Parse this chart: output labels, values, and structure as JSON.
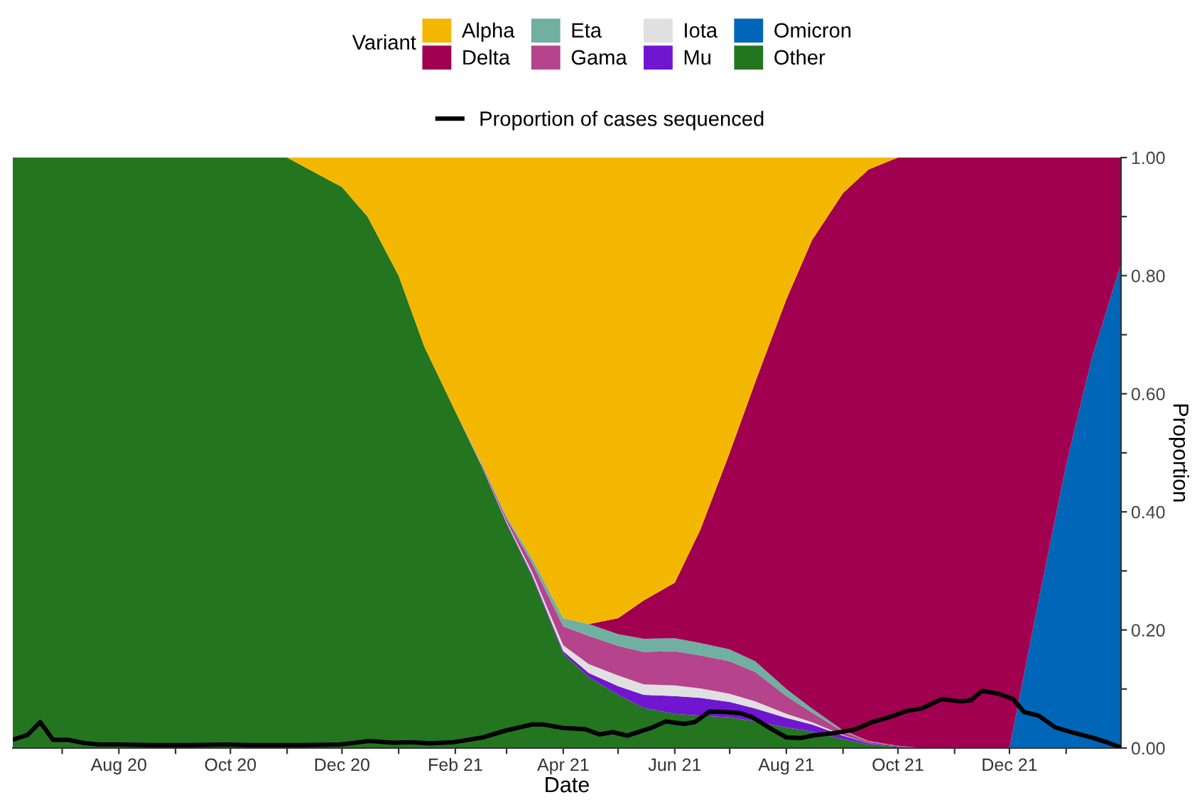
{
  "chart_data": {
    "type": "area",
    "stacked": true,
    "xlabel": "Date",
    "ylabel": "Proportion",
    "legend_title": "Variant",
    "legend": "top",
    "grid": false,
    "x": [
      "2020-06-04",
      "2020-07-01",
      "2020-08-01",
      "2020-09-01",
      "2020-10-01",
      "2020-11-01",
      "2020-12-01",
      "2020-12-15",
      "2021-01-01",
      "2021-01-15",
      "2021-02-01",
      "2021-02-15",
      "2021-03-01",
      "2021-03-15",
      "2021-04-01",
      "2021-04-15",
      "2021-05-01",
      "2021-05-15",
      "2021-06-01",
      "2021-06-15",
      "2021-07-01",
      "2021-07-15",
      "2021-08-01",
      "2021-08-15",
      "2021-09-01",
      "2021-09-15",
      "2021-10-01",
      "2021-10-15",
      "2021-11-01",
      "2021-11-15",
      "2021-12-01",
      "2021-12-15",
      "2022-01-01",
      "2022-01-15",
      "2022-01-31"
    ],
    "series": [
      {
        "name": "Other",
        "color": "#237520",
        "values": [
          1,
          1,
          1,
          1,
          1,
          1,
          0.95,
          0.9,
          0.8,
          0.68,
          0.57,
          0.48,
          0.38,
          0.29,
          0.16,
          0.12,
          0.09,
          0.068,
          0.058,
          0.055,
          0.052,
          0.045,
          0.035,
          0.028,
          0.015,
          0.006,
          0.002,
          0,
          null,
          null,
          null,
          null,
          null,
          null,
          null
        ]
      },
      {
        "name": "Omicron",
        "color": "#0066b8",
        "values": [
          null,
          null,
          null,
          null,
          null,
          null,
          null,
          null,
          null,
          null,
          null,
          null,
          null,
          null,
          null,
          null,
          null,
          null,
          null,
          null,
          null,
          null,
          null,
          null,
          null,
          null,
          null,
          null,
          null,
          null,
          0,
          0.22,
          0.48,
          0.66,
          0.82
        ]
      },
      {
        "name": "Mu",
        "color": "#7116d0",
        "values": [
          null,
          null,
          null,
          null,
          null,
          null,
          null,
          null,
          null,
          null,
          null,
          0.001,
          0.002,
          0.003,
          0.004,
          0.007,
          0.015,
          0.022,
          0.03,
          0.03,
          0.026,
          0.022,
          0.016,
          0.012,
          0.006,
          0.002,
          0.001,
          0,
          null,
          null,
          null,
          null,
          null,
          null,
          null
        ]
      },
      {
        "name": "Iota",
        "color": "#e0e0e0",
        "values": [
          null,
          null,
          null,
          null,
          null,
          null,
          null,
          null,
          null,
          null,
          0,
          0.001,
          0.002,
          0.005,
          0.01,
          0.015,
          0.018,
          0.018,
          0.018,
          0.016,
          0.014,
          0.012,
          0.007,
          0.004,
          0.001,
          0,
          null,
          null,
          null,
          null,
          null,
          null,
          null,
          null,
          null
        ]
      },
      {
        "name": "Gama",
        "color": "#b5448c",
        "values": [
          null,
          null,
          null,
          null,
          null,
          null,
          null,
          null,
          null,
          null,
          0,
          0.002,
          0.005,
          0.015,
          0.032,
          0.048,
          0.05,
          0.055,
          0.058,
          0.056,
          0.055,
          0.05,
          0.03,
          0.016,
          0.006,
          0.003,
          0.001,
          0,
          null,
          null,
          null,
          null,
          null,
          null,
          null
        ]
      },
      {
        "name": "Eta",
        "color": "#6fb0a0",
        "values": [
          null,
          null,
          null,
          null,
          null,
          null,
          null,
          null,
          null,
          null,
          0,
          0.001,
          0.003,
          0.008,
          0.014,
          0.02,
          0.02,
          0.022,
          0.022,
          0.021,
          0.02,
          0.018,
          0.012,
          0.007,
          0.002,
          0.001,
          0,
          null,
          null,
          null,
          null,
          null,
          null,
          null,
          null
        ]
      },
      {
        "name": "Delta",
        "color": "#a0004f",
        "values": [
          null,
          null,
          null,
          null,
          null,
          null,
          null,
          null,
          null,
          null,
          null,
          null,
          null,
          null,
          null,
          0,
          0.027,
          0.065,
          0.094,
          0.192,
          0.333,
          0.473,
          0.66,
          0.793,
          0.91,
          0.968,
          0.996,
          1,
          1,
          1,
          1,
          0.78,
          0.52,
          0.34,
          0.18
        ]
      },
      {
        "name": "Alpha",
        "color": "#f4b700",
        "values": [
          null,
          null,
          null,
          null,
          null,
          0,
          0.05,
          0.1,
          0.2,
          0.32,
          0.43,
          0.515,
          0.608,
          0.679,
          0.78,
          0.79,
          0.78,
          0.75,
          0.72,
          0.63,
          0.5,
          0.38,
          0.24,
          0.14,
          0.06,
          0.02,
          0,
          null,
          null,
          null,
          null,
          null,
          null,
          null,
          null
        ]
      },
      {
        "name": "Proportion of cases sequenced",
        "type": "line",
        "color": "#000000",
        "x": [
          "2020-06-05",
          "2020-06-12",
          "2020-06-19",
          "2020-06-26",
          "2020-07-04",
          "2020-07-12",
          "2020-07-21",
          "2020-08-02",
          "2020-08-19",
          "2020-09-08",
          "2020-09-29",
          "2020-10-11",
          "2020-11-09",
          "2020-11-30",
          "2020-12-16",
          "2020-12-29",
          "2021-01-08",
          "2021-01-18",
          "2021-01-31",
          "2021-02-16",
          "2021-03-01",
          "2021-03-15",
          "2021-03-21",
          "2021-04-01",
          "2021-04-13",
          "2021-04-21",
          "2021-04-28",
          "2021-05-06",
          "2021-05-19",
          "2021-05-27",
          "2021-06-06",
          "2021-06-12",
          "2021-06-20",
          "2021-06-29",
          "2021-07-07",
          "2021-07-13",
          "2021-07-24",
          "2021-08-01",
          "2021-08-09",
          "2021-08-17",
          "2021-08-26",
          "2021-09-07",
          "2021-09-17",
          "2021-09-28",
          "2021-10-06",
          "2021-10-14",
          "2021-10-25",
          "2021-11-04",
          "2021-11-10",
          "2021-11-16",
          "2021-11-25",
          "2021-12-03",
          "2021-12-09",
          "2021-12-17",
          "2021-12-26",
          "2022-01-05",
          "2022-01-15",
          "2022-01-24",
          "2022-01-31"
        ],
        "values": [
          0.015,
          0.022,
          0.044,
          0.014,
          0.014,
          0.009,
          0.006,
          0.006,
          0.005,
          0.005,
          0.006,
          0.005,
          0.005,
          0.006,
          0.012,
          0.009,
          0.01,
          0.008,
          0.01,
          0.018,
          0.03,
          0.04,
          0.04,
          0.034,
          0.032,
          0.023,
          0.027,
          0.021,
          0.034,
          0.045,
          0.041,
          0.044,
          0.062,
          0.061,
          0.059,
          0.053,
          0.032,
          0.018,
          0.017,
          0.022,
          0.025,
          0.031,
          0.044,
          0.054,
          0.063,
          0.067,
          0.083,
          0.079,
          0.081,
          0.097,
          0.092,
          0.083,
          0.061,
          0.055,
          0.035,
          0.026,
          0.018,
          0.009,
          0.001
        ]
      }
    ],
    "xlim": [
      "2020-06-04",
      "2022-01-31"
    ],
    "xticks": [
      {
        "value": "2020-07-01",
        "label": null
      },
      {
        "value": "2020-08-01",
        "label": "Aug 20"
      },
      {
        "value": "2020-09-01",
        "label": null
      },
      {
        "value": "2020-10-01",
        "label": "Oct 20"
      },
      {
        "value": "2020-11-01",
        "label": null
      },
      {
        "value": "2020-12-01",
        "label": "Dec 20"
      },
      {
        "value": "2021-01-01",
        "label": null
      },
      {
        "value": "2021-02-01",
        "label": "Feb 21"
      },
      {
        "value": "2021-03-01",
        "label": null
      },
      {
        "value": "2021-04-01",
        "label": "Apr 21"
      },
      {
        "value": "2021-05-01",
        "label": null
      },
      {
        "value": "2021-06-01",
        "label": "Jun 21"
      },
      {
        "value": "2021-07-01",
        "label": null
      },
      {
        "value": "2021-08-01",
        "label": "Aug 21"
      },
      {
        "value": "2021-09-01",
        "label": null
      },
      {
        "value": "2021-10-01",
        "label": "Oct 21"
      },
      {
        "value": "2021-11-01",
        "label": null
      },
      {
        "value": "2021-12-01",
        "label": "Dec 21"
      },
      {
        "value": "2022-01-01",
        "label": null
      }
    ],
    "ylim": [
      0,
      1
    ],
    "yticks": [
      {
        "value": 0,
        "label": "0.00"
      },
      {
        "value": 0.1,
        "label": null
      },
      {
        "value": 0.2,
        "label": "0.20"
      },
      {
        "value": 0.3,
        "label": null
      },
      {
        "value": 0.4,
        "label": "0.40"
      },
      {
        "value": 0.5,
        "label": null
      },
      {
        "value": 0.6,
        "label": "0.60"
      },
      {
        "value": 0.7,
        "label": null
      },
      {
        "value": 0.8,
        "label": "0.80"
      },
      {
        "value": 0.9,
        "label": null
      },
      {
        "value": 1,
        "label": "1.00"
      }
    ]
  }
}
